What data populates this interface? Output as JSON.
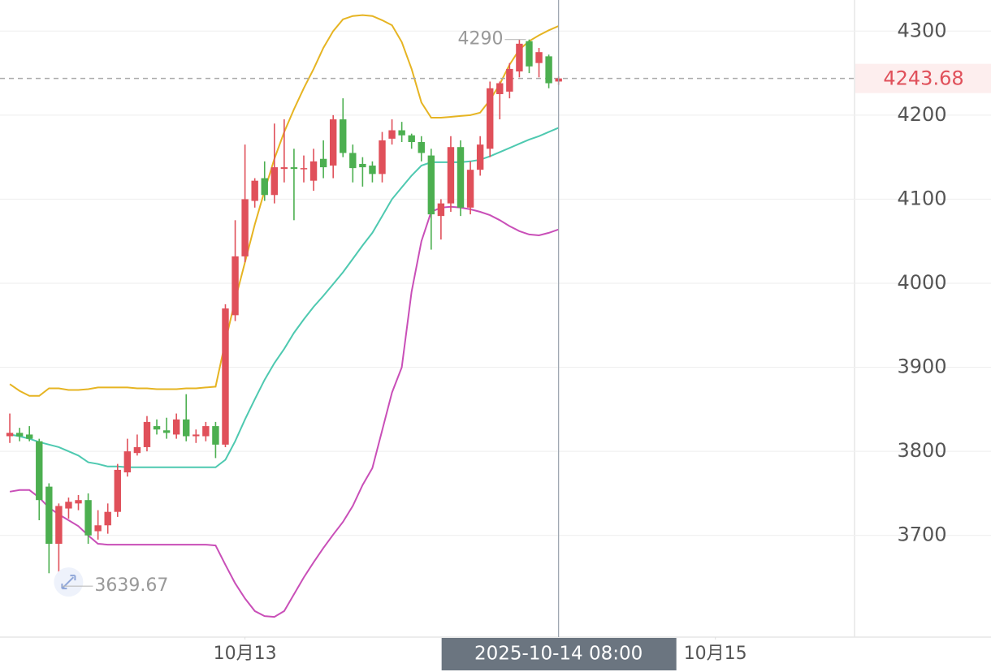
{
  "chart_data": {
    "type": "candlestick",
    "up_color": "#e0505a",
    "down_color": "#4caf50",
    "open": [
      3818,
      3822,
      3820,
      3812,
      3758,
      3690,
      3732,
      3738,
      3742,
      3705,
      3712,
      3728,
      3775,
      3798,
      3805,
      3830,
      3825,
      3820,
      3838,
      3818,
      3818,
      3830,
      3808,
      3962,
      4032,
      4098,
      4125,
      4105,
      4136,
      4138,
      4136,
      4122,
      4148,
      4140,
      4195,
      4155,
      4142,
      4140,
      4130,
      4172,
      4182,
      4176,
      4168,
      4152,
      4080,
      4095,
      4162,
      4090,
      4135,
      4160,
      4225,
      4228,
      4252,
      4288,
      4262,
      4270,
      4240
    ],
    "high": [
      3845,
      3828,
      3830,
      3815,
      3762,
      3738,
      3745,
      3748,
      3750,
      3730,
      3738,
      3785,
      3815,
      3820,
      3842,
      3838,
      3840,
      3845,
      3868,
      3826,
      3835,
      3835,
      3975,
      4075,
      4165,
      4125,
      4145,
      4190,
      4195,
      4160,
      4152,
      4160,
      4170,
      4200,
      4220,
      4165,
      4150,
      4145,
      4180,
      4195,
      4192,
      4178,
      4175,
      4160,
      4100,
      4175,
      4170,
      4145,
      4175,
      4240,
      4240,
      4262,
      4289.74,
      4290,
      4280,
      4272,
      4246
    ],
    "low": [
      3810,
      3812,
      3812,
      3718,
      3655,
      3639.67,
      3720,
      3730,
      3690,
      3695,
      3702,
      3722,
      3770,
      3795,
      3800,
      3820,
      3815,
      3815,
      3812,
      3810,
      3812,
      3792,
      3805,
      3955,
      4025,
      4090,
      4098,
      4095,
      4120,
      4075,
      4120,
      4110,
      4125,
      4125,
      4150,
      4120,
      4115,
      4120,
      4120,
      4165,
      4168,
      4160,
      4145,
      4040,
      4052,
      4085,
      4080,
      4082,
      4128,
      4150,
      4195,
      4220,
      4245,
      4250,
      4245,
      4232,
      4236
    ],
    "close": [
      3822,
      3818,
      3815,
      3742,
      3690,
      3735,
      3740,
      3742,
      3700,
      3712,
      3728,
      3778,
      3800,
      3805,
      3835,
      3826,
      3822,
      3838,
      3818,
      3820,
      3830,
      3808,
      3970,
      4032,
      4100,
      4122,
      4105,
      4138,
      4138,
      4136,
      4137,
      4145,
      4138,
      4195,
      4155,
      4137,
      4138,
      4130,
      4170,
      4182,
      4176,
      4168,
      4155,
      4082,
      4095,
      4162,
      4090,
      4135,
      4165,
      4232,
      4238,
      4255,
      4285,
      4258,
      4275,
      4238,
      4243.68
    ],
    "bands": [
      {
        "color": "#e6b422",
        "values": [
          3880,
          3872,
          3866,
          3866,
          3875,
          3875,
          3873,
          3873,
          3874,
          3876,
          3876,
          3876,
          3876,
          3875,
          3875,
          3874,
          3874,
          3874,
          3875,
          3875,
          3876,
          3877,
          3931,
          3980,
          4025,
          4070,
          4110,
          4148,
          4180,
          4207,
          4232,
          4255,
          4280,
          4300,
          4314,
          4318,
          4319,
          4318,
          4313,
          4307,
          4287,
          4255,
          4215,
          4197,
          4197,
          4198,
          4199,
          4200,
          4203,
          4218,
          4237,
          4260,
          4278,
          4288,
          4295,
          4301,
          4306
        ]
      },
      {
        "color": "#4ec9b0",
        "values": [
          3820,
          3818,
          3815,
          3811,
          3808,
          3805,
          3800,
          3795,
          3787,
          3785,
          3782,
          3782,
          3781,
          3781,
          3781,
          3781,
          3781,
          3781,
          3781,
          3781,
          3781,
          3781,
          3790,
          3812,
          3838,
          3862,
          3885,
          3905,
          3922,
          3941,
          3957,
          3972,
          3985,
          3999,
          4013,
          4029,
          4045,
          4060,
          4080,
          4100,
          4114,
          4128,
          4140,
          4144,
          4144,
          4144,
          4144,
          4145,
          4147,
          4151,
          4156,
          4161,
          4166,
          4171,
          4175,
          4180,
          4185
        ]
      },
      {
        "color": "#c94fb8",
        "values": [
          3752,
          3754,
          3754,
          3745,
          3733,
          3725,
          3718,
          3711,
          3700,
          3690,
          3689,
          3689,
          3689,
          3689,
          3689,
          3689,
          3689,
          3689,
          3689,
          3689,
          3689,
          3688,
          3665,
          3643,
          3625,
          3610,
          3604,
          3603,
          3610,
          3630,
          3650,
          3668,
          3685,
          3701,
          3716,
          3735,
          3760,
          3780,
          3825,
          3870,
          3900,
          3990,
          4050,
          4085,
          4090,
          4091,
          4090,
          4088,
          4085,
          4081,
          4075,
          4068,
          4062,
          4058,
          4057,
          4060,
          4064
        ]
      }
    ],
    "ylim": [
      3579,
      4337
    ],
    "yticks": [
      3700,
      3800,
      3900,
      4000,
      4100,
      4200,
      4300
    ],
    "xlim": [
      -1,
      86.2
    ],
    "xticks": [
      {
        "value": 24,
        "label": "10月13"
      },
      {
        "value": 72,
        "label": "10月15"
      }
    ],
    "crosshair": {
      "value": 56,
      "label": "2025-10-14 08:00"
    },
    "last_price": 4243.68,
    "grid": true
  }
}
